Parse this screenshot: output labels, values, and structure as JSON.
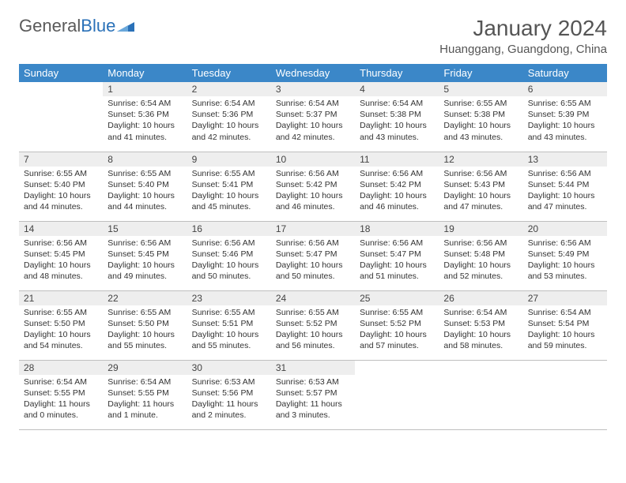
{
  "logo": {
    "text_gray": "General",
    "text_blue": "Blue"
  },
  "title": "January 2024",
  "location": "Huanggang, Guangdong, China",
  "colors": {
    "header_bg": "#3b87c8",
    "header_fg": "#ffffff",
    "daynum_bg": "#eeeeee",
    "row_border": "#bfbfbf",
    "text": "#333333",
    "logo_gray": "#5a5a5a",
    "logo_blue": "#2a71b8",
    "page_bg": "#ffffff"
  },
  "weekdays": [
    "Sunday",
    "Monday",
    "Tuesday",
    "Wednesday",
    "Thursday",
    "Friday",
    "Saturday"
  ],
  "weeks": [
    [
      null,
      {
        "n": "1",
        "sr": "6:54 AM",
        "ss": "5:36 PM",
        "dl": "10 hours and 41 minutes."
      },
      {
        "n": "2",
        "sr": "6:54 AM",
        "ss": "5:36 PM",
        "dl": "10 hours and 42 minutes."
      },
      {
        "n": "3",
        "sr": "6:54 AM",
        "ss": "5:37 PM",
        "dl": "10 hours and 42 minutes."
      },
      {
        "n": "4",
        "sr": "6:54 AM",
        "ss": "5:38 PM",
        "dl": "10 hours and 43 minutes."
      },
      {
        "n": "5",
        "sr": "6:55 AM",
        "ss": "5:38 PM",
        "dl": "10 hours and 43 minutes."
      },
      {
        "n": "6",
        "sr": "6:55 AM",
        "ss": "5:39 PM",
        "dl": "10 hours and 43 minutes."
      }
    ],
    [
      {
        "n": "7",
        "sr": "6:55 AM",
        "ss": "5:40 PM",
        "dl": "10 hours and 44 minutes."
      },
      {
        "n": "8",
        "sr": "6:55 AM",
        "ss": "5:40 PM",
        "dl": "10 hours and 44 minutes."
      },
      {
        "n": "9",
        "sr": "6:55 AM",
        "ss": "5:41 PM",
        "dl": "10 hours and 45 minutes."
      },
      {
        "n": "10",
        "sr": "6:56 AM",
        "ss": "5:42 PM",
        "dl": "10 hours and 46 minutes."
      },
      {
        "n": "11",
        "sr": "6:56 AM",
        "ss": "5:42 PM",
        "dl": "10 hours and 46 minutes."
      },
      {
        "n": "12",
        "sr": "6:56 AM",
        "ss": "5:43 PM",
        "dl": "10 hours and 47 minutes."
      },
      {
        "n": "13",
        "sr": "6:56 AM",
        "ss": "5:44 PM",
        "dl": "10 hours and 47 minutes."
      }
    ],
    [
      {
        "n": "14",
        "sr": "6:56 AM",
        "ss": "5:45 PM",
        "dl": "10 hours and 48 minutes."
      },
      {
        "n": "15",
        "sr": "6:56 AM",
        "ss": "5:45 PM",
        "dl": "10 hours and 49 minutes."
      },
      {
        "n": "16",
        "sr": "6:56 AM",
        "ss": "5:46 PM",
        "dl": "10 hours and 50 minutes."
      },
      {
        "n": "17",
        "sr": "6:56 AM",
        "ss": "5:47 PM",
        "dl": "10 hours and 50 minutes."
      },
      {
        "n": "18",
        "sr": "6:56 AM",
        "ss": "5:47 PM",
        "dl": "10 hours and 51 minutes."
      },
      {
        "n": "19",
        "sr": "6:56 AM",
        "ss": "5:48 PM",
        "dl": "10 hours and 52 minutes."
      },
      {
        "n": "20",
        "sr": "6:56 AM",
        "ss": "5:49 PM",
        "dl": "10 hours and 53 minutes."
      }
    ],
    [
      {
        "n": "21",
        "sr": "6:55 AM",
        "ss": "5:50 PM",
        "dl": "10 hours and 54 minutes."
      },
      {
        "n": "22",
        "sr": "6:55 AM",
        "ss": "5:50 PM",
        "dl": "10 hours and 55 minutes."
      },
      {
        "n": "23",
        "sr": "6:55 AM",
        "ss": "5:51 PM",
        "dl": "10 hours and 55 minutes."
      },
      {
        "n": "24",
        "sr": "6:55 AM",
        "ss": "5:52 PM",
        "dl": "10 hours and 56 minutes."
      },
      {
        "n": "25",
        "sr": "6:55 AM",
        "ss": "5:52 PM",
        "dl": "10 hours and 57 minutes."
      },
      {
        "n": "26",
        "sr": "6:54 AM",
        "ss": "5:53 PM",
        "dl": "10 hours and 58 minutes."
      },
      {
        "n": "27",
        "sr": "6:54 AM",
        "ss": "5:54 PM",
        "dl": "10 hours and 59 minutes."
      }
    ],
    [
      {
        "n": "28",
        "sr": "6:54 AM",
        "ss": "5:55 PM",
        "dl": "11 hours and 0 minutes."
      },
      {
        "n": "29",
        "sr": "6:54 AM",
        "ss": "5:55 PM",
        "dl": "11 hours and 1 minute."
      },
      {
        "n": "30",
        "sr": "6:53 AM",
        "ss": "5:56 PM",
        "dl": "11 hours and 2 minutes."
      },
      {
        "n": "31",
        "sr": "6:53 AM",
        "ss": "5:57 PM",
        "dl": "11 hours and 3 minutes."
      },
      null,
      null,
      null
    ]
  ],
  "labels": {
    "sunrise": "Sunrise:",
    "sunset": "Sunset:",
    "daylight": "Daylight:"
  }
}
